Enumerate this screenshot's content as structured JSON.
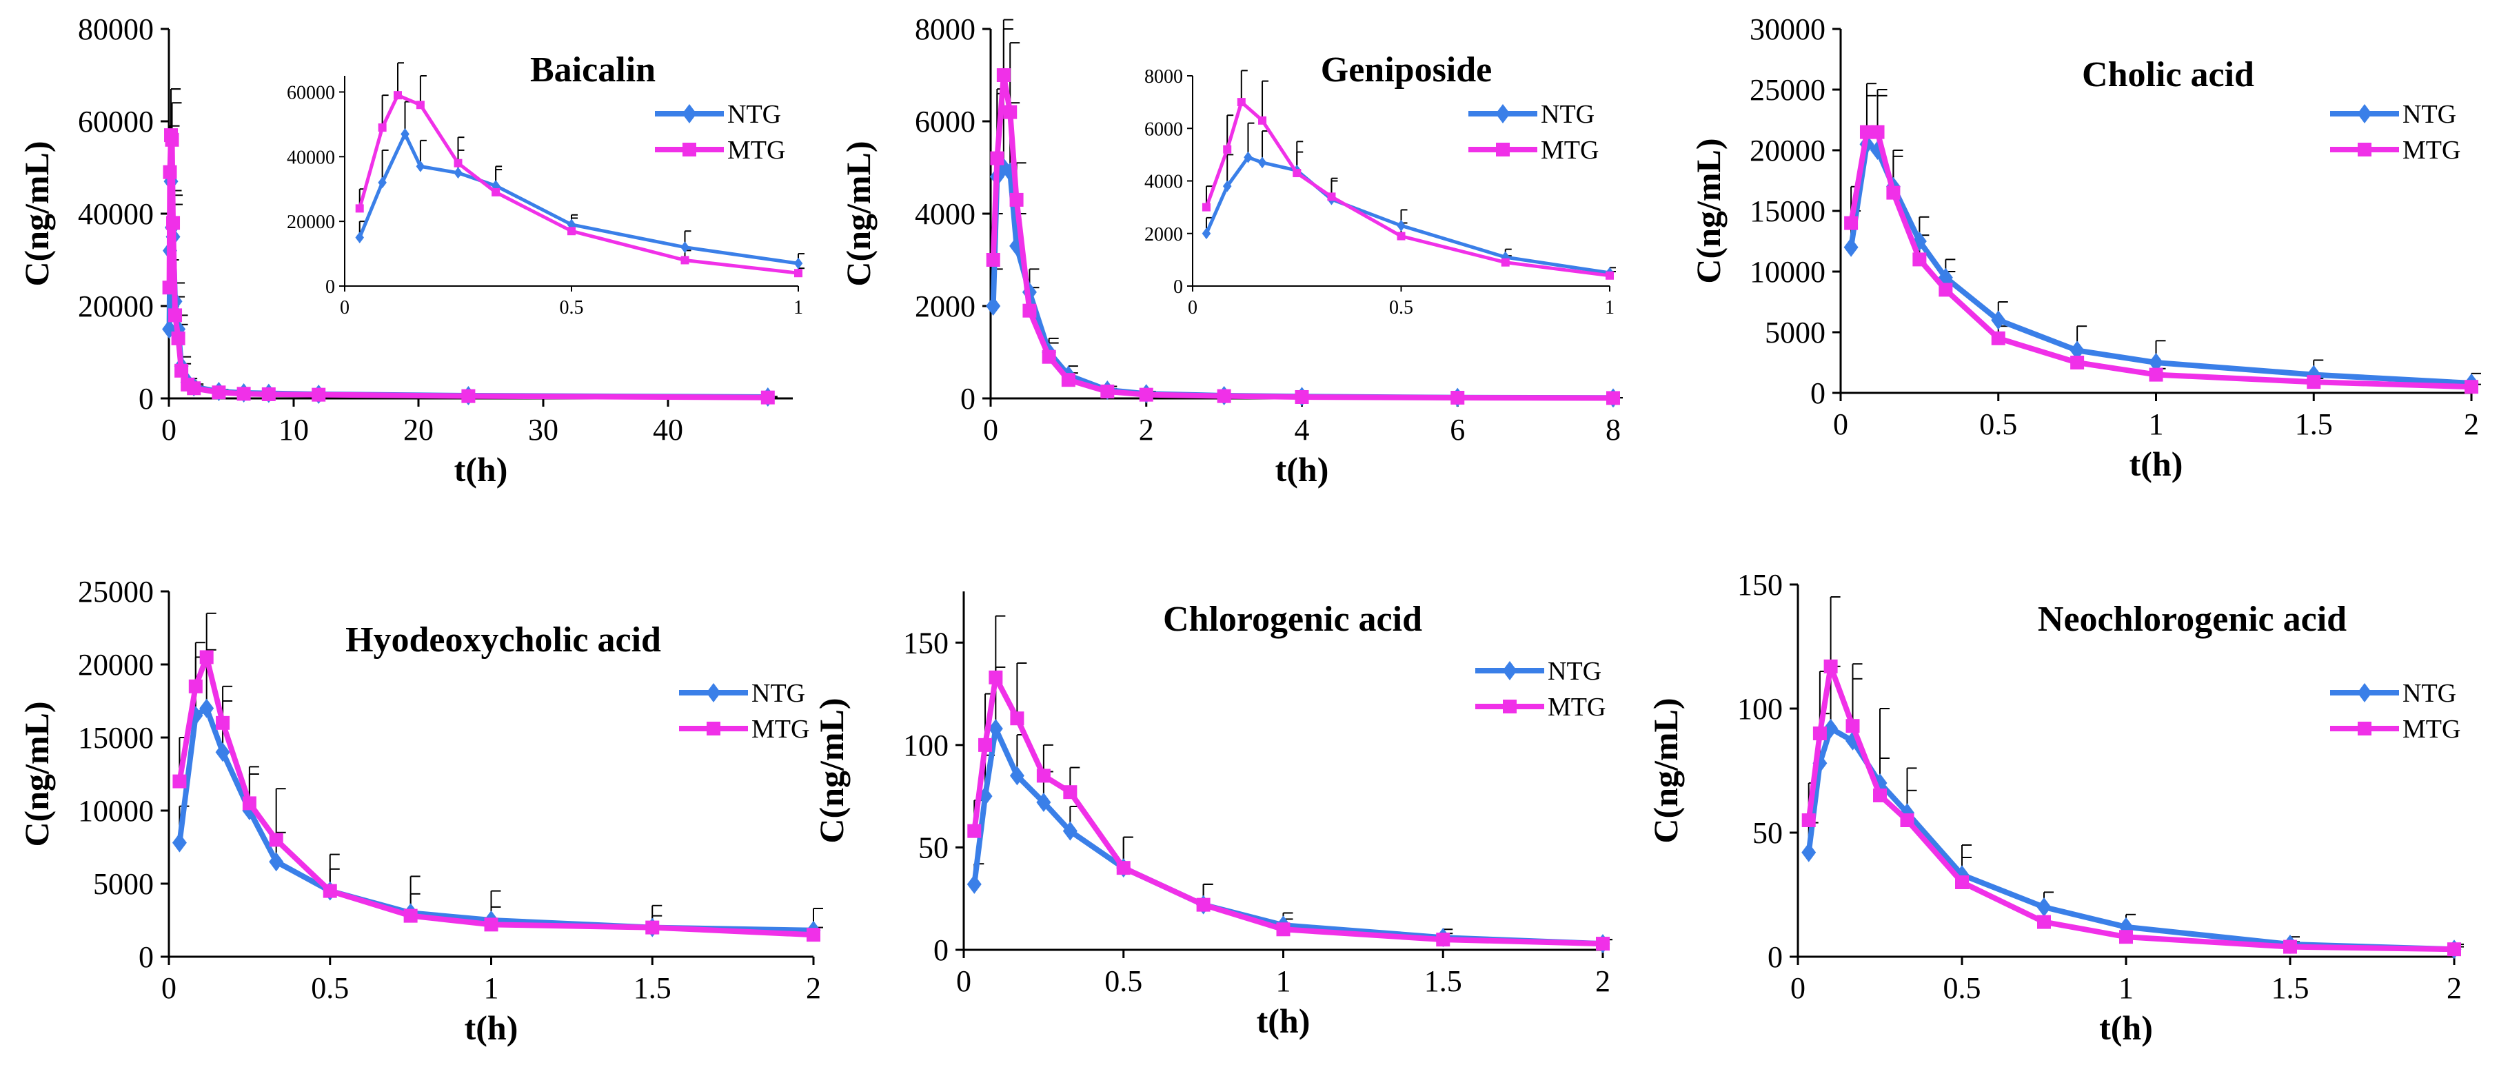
{
  "colors": {
    "NTG": "#3a7fe8",
    "MTG": "#f030e8",
    "axis": "#000000",
    "error": "#000000"
  },
  "legend": [
    "NTG",
    "MTG"
  ],
  "chart_data": [
    {
      "type": "line",
      "title": "Baicalin",
      "xlabel": "t(h)",
      "ylabel": "C(ng/mL)",
      "xlim": [
        0,
        50
      ],
      "ylim": [
        0,
        80000
      ],
      "xticks": [
        0,
        10,
        20,
        30,
        40
      ],
      "xticklabels": [
        "0",
        "10",
        "20",
        "30",
        "40"
      ],
      "yticks": [
        0,
        20000,
        40000,
        60000,
        80000
      ],
      "yticklabels": [
        "0",
        "20000",
        "40000",
        "60000",
        "80000"
      ],
      "series": [
        {
          "name": "NTG",
          "x": [
            0.033,
            0.083,
            0.167,
            0.25,
            0.333,
            0.5,
            0.75,
            1,
            1.5,
            2,
            4,
            6,
            8,
            12,
            24,
            48
          ],
          "y": [
            15000,
            32000,
            47000,
            37000,
            35000,
            21000,
            15000,
            7000,
            3500,
            2500,
            1500,
            1200,
            1100,
            900,
            600,
            300
          ],
          "err": [
            5000,
            10000,
            20000,
            8000,
            7000,
            4000,
            3000,
            2000,
            800,
            600,
            400,
            300,
            300,
            200,
            150,
            100
          ]
        },
        {
          "name": "MTG",
          "x": [
            0.033,
            0.083,
            0.167,
            0.25,
            0.333,
            0.5,
            0.75,
            1,
            1.5,
            2,
            4,
            6,
            8,
            12,
            24,
            48
          ],
          "y": [
            24000,
            49000,
            57000,
            56000,
            38000,
            18000,
            13000,
            6000,
            3000,
            2200,
            1300,
            1000,
            900,
            800,
            500,
            200
          ],
          "err": [
            6000,
            10000,
            10000,
            8000,
            6000,
            4000,
            3000,
            1500,
            700,
            500,
            300,
            250,
            250,
            200,
            100,
            80
          ]
        }
      ],
      "inset": {
        "xlim": [
          0,
          1
        ],
        "ylim": [
          0,
          65000
        ],
        "xticks": [
          0,
          0.5,
          1
        ],
        "xticklabels": [
          "0",
          "0.5",
          "1"
        ],
        "yticks": [
          0,
          20000,
          40000,
          60000
        ],
        "yticklabels": [
          "0",
          "20000",
          "40000",
          "60000"
        ],
        "series": [
          {
            "name": "NTG",
            "x": [
              0.033,
              0.083,
              0.133,
              0.167,
              0.25,
              0.333,
              0.5,
              0.75,
              1
            ],
            "y": [
              15000,
              32000,
              47000,
              37000,
              35000,
              31000,
              19000,
              12000,
              7000
            ],
            "err": [
              5000,
              10000,
              10000,
              8000,
              7000,
              6000,
              3000,
              5000,
              3000
            ]
          },
          {
            "name": "MTG",
            "x": [
              0.033,
              0.083,
              0.117,
              0.167,
              0.25,
              0.333,
              0.5,
              0.75,
              1
            ],
            "y": [
              24000,
              49000,
              59000,
              56000,
              38000,
              29000,
              17000,
              8000,
              4000
            ],
            "err": [
              6000,
              10000,
              10000,
              9000,
              8000,
              7000,
              4000,
              3000,
              1500
            ]
          }
        ]
      }
    },
    {
      "type": "line",
      "title": "Geniposide",
      "xlabel": "t(h)",
      "ylabel": "C(ng/mL)",
      "xlim": [
        0,
        8
      ],
      "ylim": [
        0,
        8000
      ],
      "xticks": [
        0,
        2,
        4,
        6,
        8
      ],
      "xticklabels": [
        "0",
        "2",
        "4",
        "6",
        "8"
      ],
      "yticks": [
        0,
        2000,
        4000,
        6000,
        8000
      ],
      "yticklabels": [
        "0",
        "2000",
        "4000",
        "6000",
        "8000"
      ],
      "series": [
        {
          "name": "NTG",
          "x": [
            0.033,
            0.083,
            0.167,
            0.25,
            0.333,
            0.5,
            0.75,
            1,
            1.5,
            2,
            3,
            4,
            6,
            8
          ],
          "y": [
            2000,
            4800,
            5000,
            4900,
            3300,
            2300,
            1000,
            500,
            180,
            100,
            60,
            40,
            20,
            10
          ],
          "err": [
            800,
            1800,
            3000,
            1500,
            700,
            500,
            300,
            200,
            80,
            50,
            30,
            20,
            10,
            5
          ]
        },
        {
          "name": "MTG",
          "x": [
            0.033,
            0.083,
            0.167,
            0.25,
            0.333,
            0.5,
            0.75,
            1,
            1.5,
            2,
            3,
            4,
            6,
            8
          ],
          "y": [
            3000,
            5200,
            7000,
            6200,
            4300,
            1900,
            900,
            400,
            150,
            80,
            50,
            30,
            15,
            8
          ],
          "err": [
            1000,
            1500,
            1200,
            1500,
            800,
            500,
            300,
            150,
            60,
            40,
            25,
            15,
            8,
            4
          ]
        }
      ],
      "inset": {
        "xlim": [
          0,
          1
        ],
        "ylim": [
          0,
          8000
        ],
        "xticks": [
          0,
          0.5,
          1
        ],
        "xticklabels": [
          "0",
          "0.5",
          "1"
        ],
        "yticks": [
          0,
          2000,
          4000,
          6000,
          8000
        ],
        "yticklabels": [
          "0",
          "2000",
          "4000",
          "6000",
          "8000"
        ],
        "series": [
          {
            "name": "NTG",
            "x": [
              0.033,
              0.083,
              0.133,
              0.167,
              0.25,
              0.333,
              0.5,
              0.75,
              1
            ],
            "y": [
              2000,
              3800,
              4900,
              4700,
              4400,
              3300,
              2300,
              1100,
              500
            ],
            "err": [
              600,
              1200,
              1300,
              1200,
              1100,
              700,
              600,
              300,
              200
            ]
          },
          {
            "name": "MTG",
            "x": [
              0.033,
              0.083,
              0.117,
              0.167,
              0.25,
              0.333,
              0.5,
              0.75,
              1
            ],
            "y": [
              3000,
              5200,
              7000,
              6300,
              4300,
              3400,
              1900,
              900,
              400
            ],
            "err": [
              800,
              1300,
              1200,
              1500,
              800,
              700,
              500,
              250,
              150
            ]
          }
        ]
      }
    },
    {
      "type": "line",
      "title": "Cholic acid",
      "xlabel": "t(h)",
      "ylabel": "C(ng/mL)",
      "xlim": [
        0,
        2
      ],
      "ylim": [
        0,
        30000
      ],
      "xticks": [
        0,
        0.5,
        1,
        1.5,
        2
      ],
      "xticklabels": [
        "0",
        "0.5",
        "1",
        "1.5",
        "2"
      ],
      "yticks": [
        0,
        5000,
        10000,
        15000,
        20000,
        25000,
        30000
      ],
      "yticklabels": [
        "0",
        "5000",
        "10000",
        "15000",
        "20000",
        "25000",
        "30000"
      ],
      "series": [
        {
          "name": "NTG",
          "x": [
            0.033,
            0.083,
            0.117,
            0.167,
            0.25,
            0.333,
            0.5,
            0.75,
            1,
            1.5,
            2
          ],
          "y": [
            12000,
            20500,
            20000,
            17000,
            12500,
            9500,
            6000,
            3500,
            2500,
            1500,
            800
          ],
          "err": [
            3000,
            4000,
            5000,
            3000,
            2000,
            1500,
            1500,
            2000,
            1800,
            1200,
            800
          ]
        },
        {
          "name": "MTG",
          "x": [
            0.033,
            0.083,
            0.117,
            0.167,
            0.25,
            0.333,
            0.5,
            0.75,
            1,
            1.5,
            2
          ],
          "y": [
            14000,
            21500,
            21500,
            16500,
            11000,
            8500,
            4500,
            2500,
            1500,
            900,
            500
          ],
          "err": [
            3000,
            4000,
            3000,
            3000,
            2000,
            1500,
            1000,
            800,
            500,
            300,
            200
          ]
        }
      ]
    },
    {
      "type": "line",
      "title": "Hyodeoxycholic acid",
      "xlabel": "t(h)",
      "ylabel": "C(ng/mL)",
      "xlim": [
        0,
        2
      ],
      "ylim": [
        0,
        25000
      ],
      "xticks": [
        0,
        0.5,
        1,
        1.5,
        2
      ],
      "xticklabels": [
        "0",
        "0.5",
        "1",
        "1.5",
        "2"
      ],
      "yticks": [
        0,
        5000,
        10000,
        15000,
        20000,
        25000
      ],
      "yticklabels": [
        "0",
        "5000",
        "10000",
        "15000",
        "20000",
        "25000"
      ],
      "series": [
        {
          "name": "NTG",
          "x": [
            0.033,
            0.083,
            0.117,
            0.167,
            0.25,
            0.333,
            0.5,
            0.75,
            1,
            1.5,
            2
          ],
          "y": [
            7800,
            16500,
            17000,
            14000,
            10000,
            6500,
            4500,
            3000,
            2500,
            2000,
            1800
          ],
          "err": [
            2500,
            4000,
            4000,
            3500,
            2500,
            2000,
            2500,
            2500,
            2000,
            1500,
            1500
          ]
        },
        {
          "name": "MTG",
          "x": [
            0.033,
            0.083,
            0.117,
            0.167,
            0.25,
            0.333,
            0.5,
            0.75,
            1,
            1.5,
            2
          ],
          "y": [
            12000,
            18500,
            20500,
            16000,
            10500,
            8000,
            4500,
            2800,
            2200,
            2000,
            1500
          ],
          "err": [
            3000,
            3000,
            3000,
            2500,
            2500,
            3500,
            1500,
            1500,
            1200,
            800,
            500
          ]
        }
      ]
    },
    {
      "type": "line",
      "title": "Chlorogenic acid",
      "xlabel": "t(h)",
      "ylabel": "C(ng/mL)",
      "xlim": [
        0,
        2
      ],
      "ylim": [
        0,
        175
      ],
      "xticks": [
        0,
        0.5,
        1,
        1.5,
        2
      ],
      "xticklabels": [
        "0",
        "0.5",
        "1",
        "1.5",
        "2"
      ],
      "yticks": [
        0,
        50,
        100,
        150
      ],
      "yticklabels": [
        "0",
        "50",
        "100",
        "150"
      ],
      "series": [
        {
          "name": "NTG",
          "x": [
            0.033,
            0.067,
            0.1,
            0.167,
            0.25,
            0.333,
            0.5,
            0.75,
            1,
            1.5,
            2
          ],
          "y": [
            32,
            75,
            108,
            85,
            72,
            58,
            40,
            22,
            12,
            6,
            3
          ],
          "err": [
            10,
            20,
            30,
            20,
            15,
            12,
            15,
            10,
            6,
            4,
            2
          ]
        },
        {
          "name": "MTG",
          "x": [
            0.033,
            0.067,
            0.1,
            0.167,
            0.25,
            0.333,
            0.5,
            0.75,
            1,
            1.5,
            2
          ],
          "y": [
            58,
            100,
            133,
            113,
            85,
            77,
            40,
            22,
            10,
            5,
            3
          ],
          "err": [
            15,
            25,
            30,
            27,
            15,
            12,
            15,
            10,
            5,
            3,
            2
          ]
        }
      ]
    },
    {
      "type": "line",
      "title": "Neochlorogenic acid",
      "xlabel": "t(h)",
      "ylabel": "C(ng/mL)",
      "xlim": [
        0,
        2
      ],
      "ylim": [
        0,
        150
      ],
      "xticks": [
        0,
        0.5,
        1,
        1.5,
        2
      ],
      "xticklabels": [
        "0",
        "0.5",
        "1",
        "1.5",
        "2"
      ],
      "yticks": [
        0,
        50,
        100,
        150
      ],
      "yticklabels": [
        "0",
        "50",
        "100",
        "150"
      ],
      "series": [
        {
          "name": "NTG",
          "x": [
            0.033,
            0.067,
            0.1,
            0.167,
            0.25,
            0.333,
            0.5,
            0.75,
            1,
            1.5,
            2
          ],
          "y": [
            42,
            78,
            92,
            87,
            70,
            58,
            33,
            20,
            12,
            5,
            3
          ],
          "err": [
            12,
            20,
            25,
            25,
            30,
            18,
            12,
            6,
            5,
            3,
            2
          ]
        },
        {
          "name": "MTG",
          "x": [
            0.033,
            0.067,
            0.1,
            0.167,
            0.25,
            0.333,
            0.5,
            0.75,
            1,
            1.5,
            2
          ],
          "y": [
            55,
            90,
            117,
            93,
            65,
            55,
            30,
            14,
            8,
            4,
            3
          ],
          "err": [
            15,
            25,
            28,
            25,
            15,
            12,
            10,
            5,
            3,
            2,
            1
          ]
        }
      ]
    }
  ]
}
